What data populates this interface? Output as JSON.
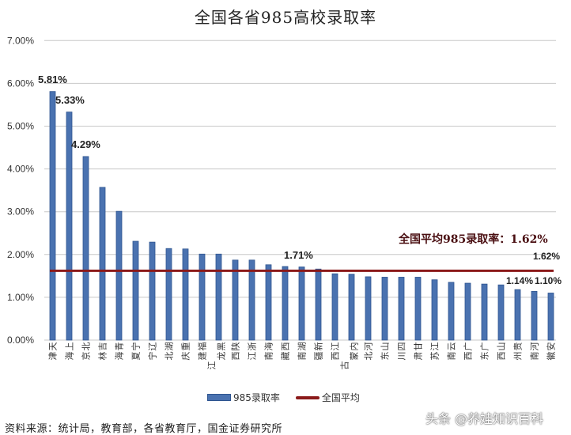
{
  "title": "全国各省985高校录取率",
  "annotation": "全国平均985录取率：1.62%",
  "legend": {
    "bar_label": "985录取率",
    "line_label": "全国平均"
  },
  "source": "资料来源：统计局，教育部，各省教育厅，国金证券研究所",
  "watermark": "头条 @养娃知识百科",
  "colors": {
    "bar": "#4a72b0",
    "bar_edge": "#2f5590",
    "average_line": "#8b1a1a",
    "grid": "#c8c8c8"
  },
  "chart_data": {
    "type": "bar",
    "title": "全国各省985高校录取率",
    "xlabel": "",
    "ylabel": "",
    "ylim": [
      0,
      7
    ],
    "yticks": [
      "0.00%",
      "1.00%",
      "2.00%",
      "3.00%",
      "4.00%",
      "5.00%",
      "6.00%",
      "7.00%"
    ],
    "grid": true,
    "legend_position": "bottom",
    "categories": [
      "天津",
      "上海",
      "北京",
      "吉林",
      "青海",
      "宁夏",
      "辽宁",
      "湖北",
      "重庆",
      "福建",
      "黑龙江",
      "陕西",
      "浙江",
      "海南",
      "西藏",
      "湖南",
      "新疆",
      "江西",
      "内蒙古",
      "河北",
      "山东",
      "四川",
      "甘肃",
      "江苏",
      "云南",
      "广西",
      "广东",
      "山西",
      "贵州",
      "河南",
      "安徽"
    ],
    "series": [
      {
        "name": "985录取率",
        "type": "bar",
        "values": [
          5.81,
          5.33,
          4.29,
          3.57,
          3.01,
          2.31,
          2.29,
          2.14,
          2.13,
          2.01,
          2.01,
          1.87,
          1.87,
          1.76,
          1.72,
          1.71,
          1.66,
          1.55,
          1.54,
          1.48,
          1.47,
          1.47,
          1.47,
          1.41,
          1.35,
          1.33,
          1.31,
          1.29,
          1.18,
          1.14,
          1.1
        ]
      },
      {
        "name": "全国平均",
        "type": "line",
        "values": [
          1.62
        ]
      }
    ],
    "data_labels": [
      {
        "category": "天津",
        "text": "5.81%"
      },
      {
        "category": "上海",
        "text": "5.33%"
      },
      {
        "category": "北京",
        "text": "4.29%"
      },
      {
        "category": "湖南",
        "text": "1.71%"
      },
      {
        "category": "河南",
        "text": "1.14%"
      },
      {
        "category": "安徽",
        "text": "1.10%"
      },
      {
        "category": "全国平均",
        "text": "1.62%"
      }
    ],
    "annotations": [
      "全国平均985录取率：1.62%"
    ],
    "unit": "%"
  }
}
